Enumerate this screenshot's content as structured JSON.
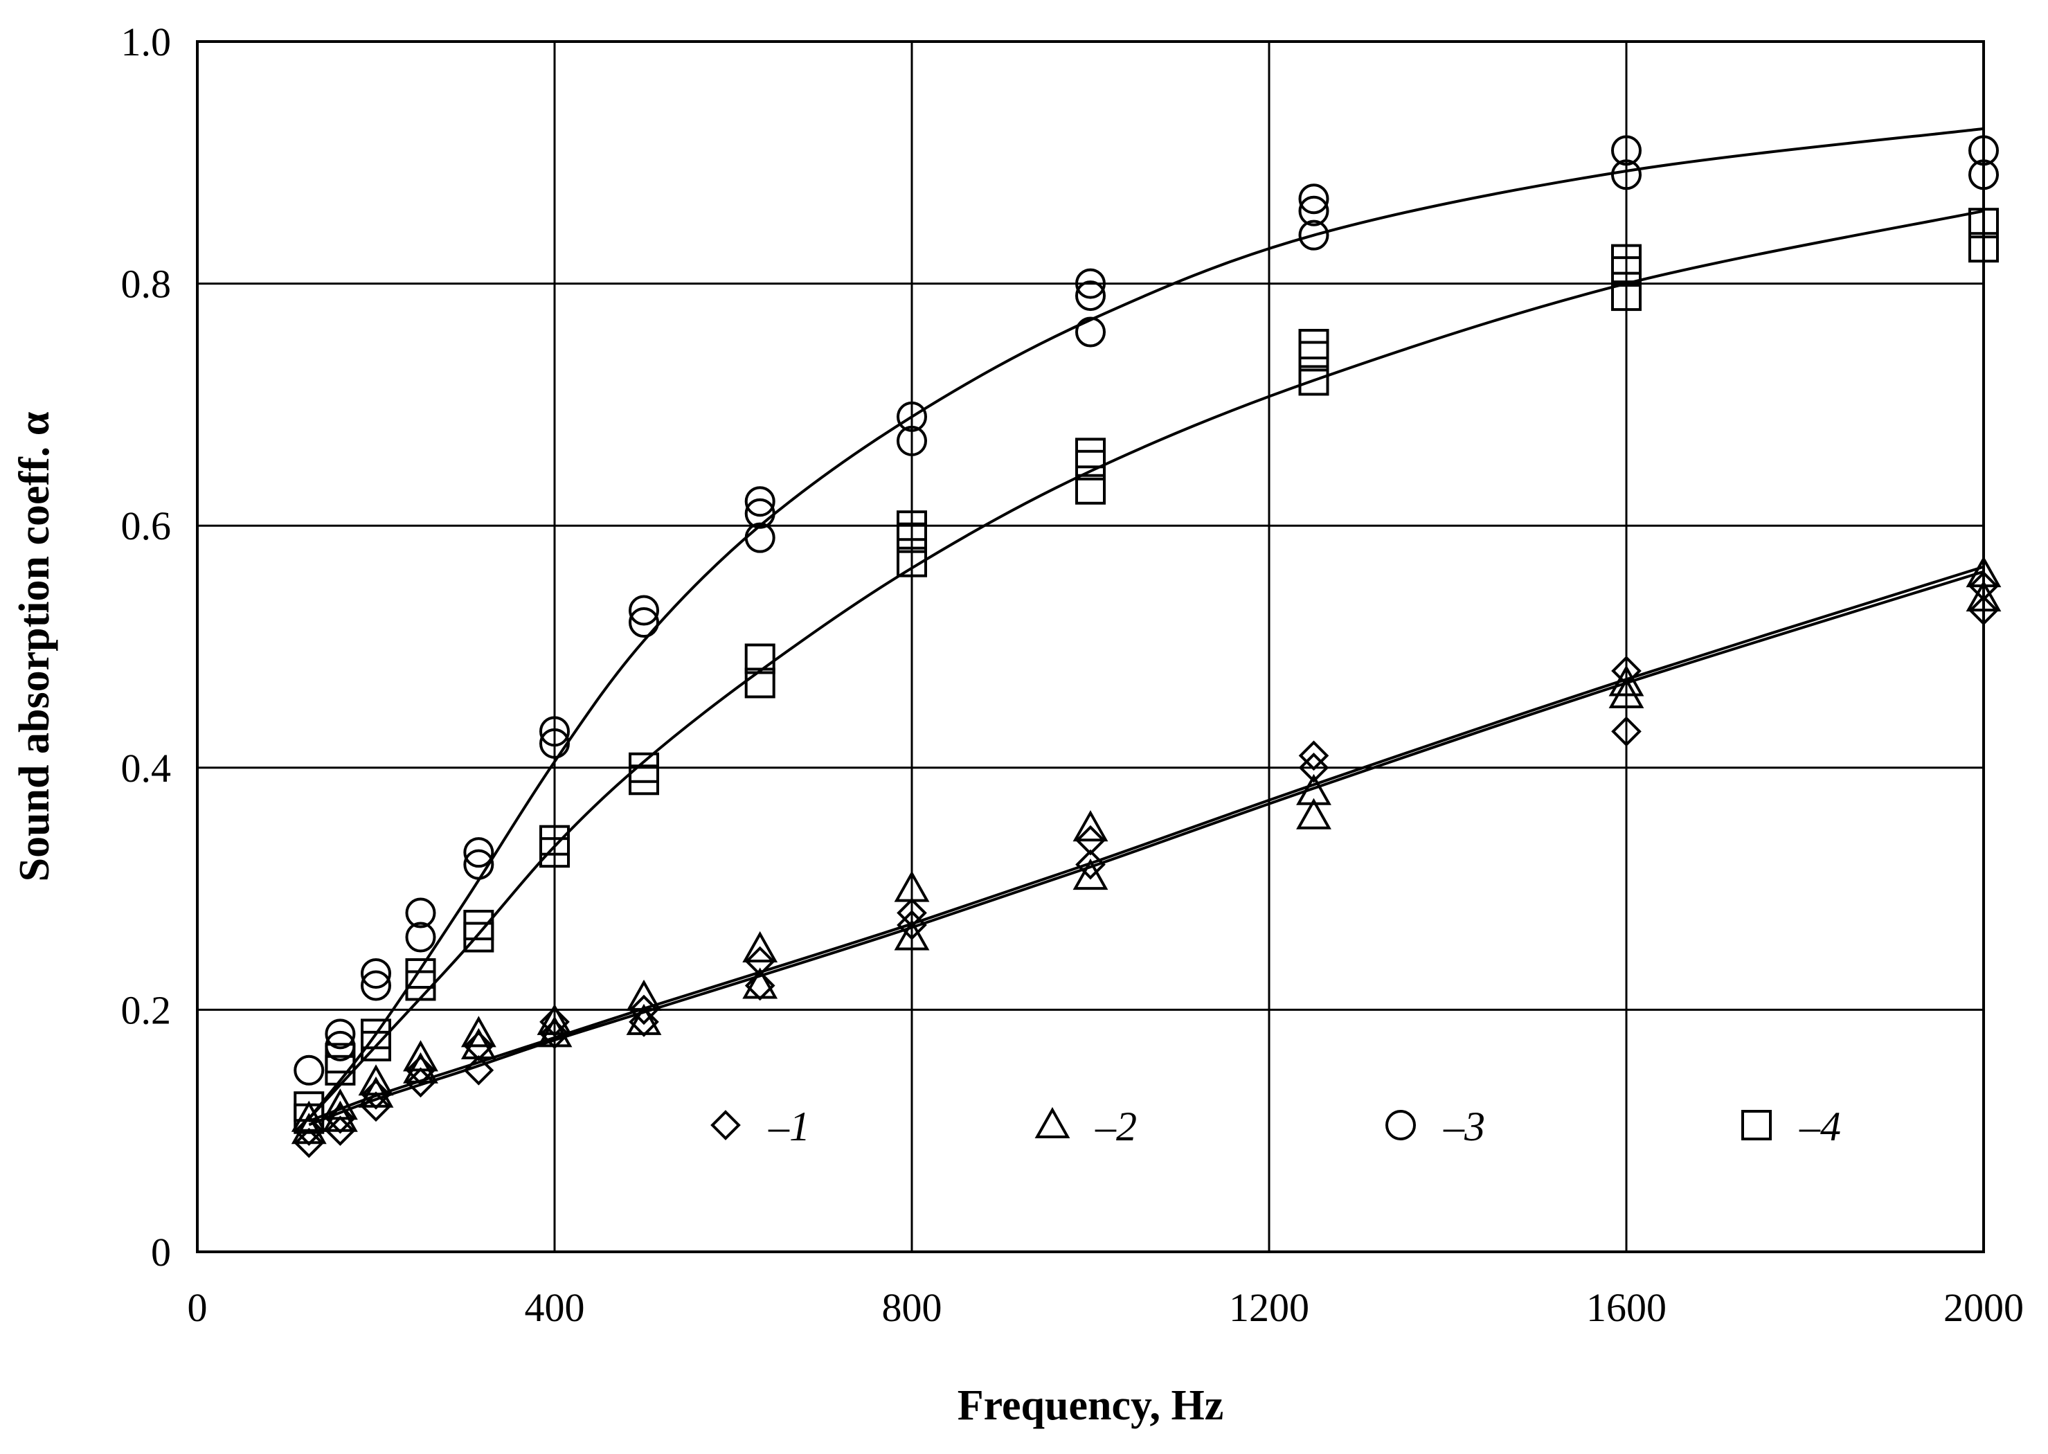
{
  "chart_data": {
    "type": "scatter",
    "title": "",
    "xlabel": "Frequency, Hz",
    "ylabel": "Sound absorption coeff. α",
    "xlim": [
      0,
      2000
    ],
    "ylim": [
      0,
      1.0
    ],
    "x_ticks": [
      0,
      400,
      800,
      1200,
      1600,
      2000
    ],
    "x_tick_labels": [
      "0",
      "400",
      "800",
      "1200",
      "1600",
      "2000"
    ],
    "y_ticks": [
      0,
      0.2,
      0.4,
      0.6,
      0.8,
      1.0
    ],
    "y_tick_labels": [
      "0",
      "0.2",
      "0.4",
      "0.6",
      "0.8",
      "1.0"
    ],
    "grid": true,
    "legend_position": "bottom",
    "series": [
      {
        "name": "1",
        "legend_label": "–1",
        "marker": "diamond",
        "points": [
          [
            125,
            0.09
          ],
          [
            125,
            0.1
          ],
          [
            160,
            0.1
          ],
          [
            160,
            0.11
          ],
          [
            200,
            0.12
          ],
          [
            200,
            0.13
          ],
          [
            250,
            0.14
          ],
          [
            250,
            0.15
          ],
          [
            315,
            0.15
          ],
          [
            315,
            0.17
          ],
          [
            400,
            0.18
          ],
          [
            400,
            0.19
          ],
          [
            500,
            0.19
          ],
          [
            500,
            0.2
          ],
          [
            630,
            0.22
          ],
          [
            630,
            0.24
          ],
          [
            800,
            0.27
          ],
          [
            800,
            0.28
          ],
          [
            1000,
            0.32
          ],
          [
            1000,
            0.34
          ],
          [
            1250,
            0.4
          ],
          [
            1250,
            0.41
          ],
          [
            1600,
            0.43
          ],
          [
            1600,
            0.48
          ],
          [
            2000,
            0.53
          ],
          [
            2000,
            0.55
          ]
        ],
        "curve": [
          [
            125,
            0.105
          ],
          [
            200,
            0.126
          ],
          [
            300,
            0.15
          ],
          [
            400,
            0.175
          ],
          [
            500,
            0.198
          ],
          [
            630,
            0.228
          ],
          [
            800,
            0.268
          ],
          [
            1000,
            0.318
          ],
          [
            1250,
            0.383
          ],
          [
            1600,
            0.47
          ],
          [
            2000,
            0.562
          ]
        ]
      },
      {
        "name": "2",
        "legend_label": "–2",
        "marker": "triangle",
        "points": [
          [
            125,
            0.1
          ],
          [
            125,
            0.11
          ],
          [
            160,
            0.11
          ],
          [
            160,
            0.12
          ],
          [
            200,
            0.13
          ],
          [
            200,
            0.14
          ],
          [
            250,
            0.15
          ],
          [
            250,
            0.16
          ],
          [
            315,
            0.17
          ],
          [
            315,
            0.18
          ],
          [
            400,
            0.18
          ],
          [
            400,
            0.19
          ],
          [
            500,
            0.19
          ],
          [
            500,
            0.21
          ],
          [
            630,
            0.22
          ],
          [
            630,
            0.25
          ],
          [
            800,
            0.26
          ],
          [
            800,
            0.3
          ],
          [
            1000,
            0.31
          ],
          [
            1000,
            0.35
          ],
          [
            1250,
            0.36
          ],
          [
            1250,
            0.38
          ],
          [
            1600,
            0.46
          ],
          [
            1600,
            0.47
          ],
          [
            2000,
            0.54
          ],
          [
            2000,
            0.56
          ]
        ],
        "curve": [
          [
            125,
            0.108
          ],
          [
            200,
            0.129
          ],
          [
            300,
            0.153
          ],
          [
            400,
            0.177
          ],
          [
            500,
            0.201
          ],
          [
            630,
            0.231
          ],
          [
            800,
            0.271
          ],
          [
            1000,
            0.321
          ],
          [
            1250,
            0.386
          ],
          [
            1600,
            0.473
          ],
          [
            2000,
            0.566
          ]
        ]
      },
      {
        "name": "3",
        "legend_label": "–3",
        "marker": "circle",
        "points": [
          [
            125,
            0.15
          ],
          [
            160,
            0.17
          ],
          [
            160,
            0.18
          ],
          [
            200,
            0.22
          ],
          [
            200,
            0.23
          ],
          [
            250,
            0.26
          ],
          [
            250,
            0.28
          ],
          [
            315,
            0.32
          ],
          [
            315,
            0.33
          ],
          [
            400,
            0.42
          ],
          [
            400,
            0.43
          ],
          [
            500,
            0.52
          ],
          [
            500,
            0.53
          ],
          [
            630,
            0.59
          ],
          [
            630,
            0.61
          ],
          [
            630,
            0.62
          ],
          [
            800,
            0.67
          ],
          [
            800,
            0.69
          ],
          [
            1000,
            0.76
          ],
          [
            1000,
            0.79
          ],
          [
            1000,
            0.8
          ],
          [
            1250,
            0.84
          ],
          [
            1250,
            0.86
          ],
          [
            1250,
            0.87
          ],
          [
            1600,
            0.89
          ],
          [
            1600,
            0.91
          ],
          [
            2000,
            0.89
          ],
          [
            2000,
            0.91
          ]
        ],
        "curve": [
          [
            125,
            0.11
          ],
          [
            200,
            0.18
          ],
          [
            300,
            0.29
          ],
          [
            400,
            0.405
          ],
          [
            500,
            0.505
          ],
          [
            630,
            0.6
          ],
          [
            800,
            0.69
          ],
          [
            1000,
            0.77
          ],
          [
            1250,
            0.84
          ],
          [
            1600,
            0.893
          ],
          [
            2000,
            0.928
          ]
        ]
      },
      {
        "name": "4",
        "legend_label": "–4",
        "marker": "square",
        "points": [
          [
            125,
            0.11
          ],
          [
            125,
            0.12
          ],
          [
            160,
            0.15
          ],
          [
            160,
            0.16
          ],
          [
            200,
            0.17
          ],
          [
            200,
            0.18
          ],
          [
            250,
            0.22
          ],
          [
            250,
            0.23
          ],
          [
            315,
            0.26
          ],
          [
            315,
            0.27
          ],
          [
            400,
            0.33
          ],
          [
            400,
            0.34
          ],
          [
            500,
            0.39
          ],
          [
            500,
            0.4
          ],
          [
            630,
            0.47
          ],
          [
            630,
            0.49
          ],
          [
            800,
            0.57
          ],
          [
            800,
            0.59
          ],
          [
            800,
            0.6
          ],
          [
            1000,
            0.63
          ],
          [
            1000,
            0.65
          ],
          [
            1000,
            0.66
          ],
          [
            1250,
            0.72
          ],
          [
            1250,
            0.74
          ],
          [
            1250,
            0.75
          ],
          [
            1600,
            0.79
          ],
          [
            1600,
            0.81
          ],
          [
            1600,
            0.82
          ],
          [
            2000,
            0.83
          ],
          [
            2000,
            0.85
          ]
        ],
        "curve": [
          [
            125,
            0.11
          ],
          [
            200,
            0.17
          ],
          [
            300,
            0.25
          ],
          [
            400,
            0.335
          ],
          [
            500,
            0.405
          ],
          [
            630,
            0.48
          ],
          [
            800,
            0.565
          ],
          [
            1000,
            0.645
          ],
          [
            1250,
            0.72
          ],
          [
            1600,
            0.8
          ],
          [
            2000,
            0.86
          ]
        ]
      }
    ]
  }
}
